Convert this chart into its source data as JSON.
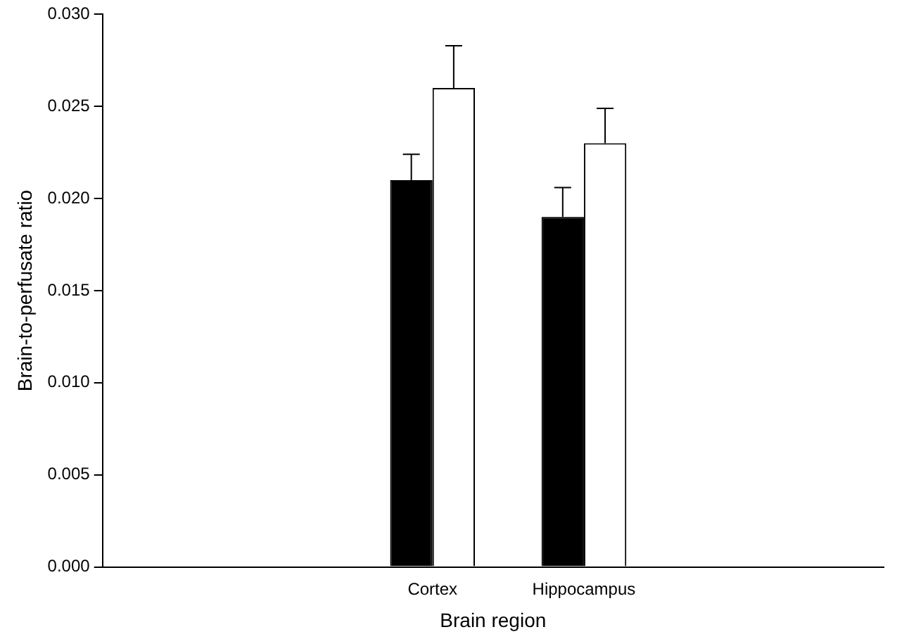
{
  "chart_data": {
    "type": "bar",
    "xlabel": "Brain region",
    "ylabel": "Brain-to-perfusate ratio",
    "categories": [
      "Cortex",
      "Hippocampus"
    ],
    "series": [
      {
        "color": "#000000",
        "values": [
          0.021,
          0.019
        ],
        "errors": [
          [
            0.021,
            0.0224
          ],
          [
            0.019,
            0.0206
          ]
        ]
      },
      {
        "color": "#ffffff",
        "values": [
          0.026,
          0.023
        ],
        "errors": [
          [
            0.026,
            0.0283
          ],
          [
            0.023,
            0.0249
          ]
        ]
      }
    ],
    "ylim": [
      0,
      0.03
    ],
    "yticks": [
      {
        "value": 0,
        "label": "0.000"
      },
      {
        "value": 0.005,
        "label": "0.005"
      },
      {
        "value": 0.01,
        "label": "0.010"
      },
      {
        "value": 0.015,
        "label": "0.015"
      },
      {
        "value": 0.02,
        "label": "0.020"
      },
      {
        "value": 0.025,
        "label": "0.025"
      },
      {
        "value": 0.03,
        "label": "0.030"
      }
    ],
    "grid": false,
    "legend": false
  }
}
